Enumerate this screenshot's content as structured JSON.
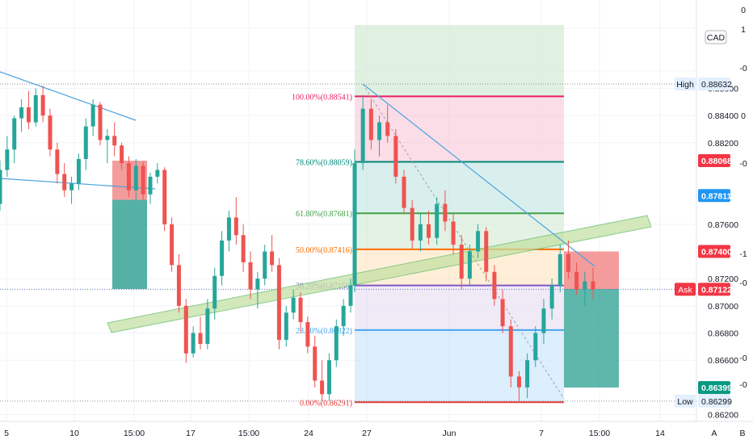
{
  "chart_data": {
    "type": "candlestick",
    "symbol_currency": "CAD",
    "colors": {
      "up": "#26a69a",
      "down": "#ef5350",
      "fib_0": "#e53935",
      "fib_236": "#42a5f5",
      "fib_382": "#7e57c2",
      "fib_50": "#ff6d00",
      "fib_618": "#43a047",
      "fib_786": "#00897b",
      "fib_100": "#e91e63",
      "ask": "#f23645",
      "target_blue": "#2196f3",
      "green_badge": "#089981",
      "axis_text": "#131722"
    },
    "y_axis": {
      "range": [
        0.8615,
        0.8925
      ],
      "ticks": [
        {
          "value": 0.886,
          "label": "0.88600"
        },
        {
          "value": 0.884,
          "label": "0.88400"
        },
        {
          "value": 0.882,
          "label": "0.88200"
        },
        {
          "value": 0.876,
          "label": "0.87600"
        },
        {
          "value": 0.872,
          "label": "0.87200"
        },
        {
          "value": 0.87,
          "label": "0.87000"
        },
        {
          "value": 0.868,
          "label": "0.86800"
        },
        {
          "value": 0.866,
          "label": "0.86600"
        },
        {
          "value": 0.862,
          "label": "0.86200"
        }
      ],
      "indicator_scale_labels": [
        "0",
        "1",
        "-0",
        "0",
        "-0",
        "-1",
        "-0",
        "-0",
        "-0"
      ]
    },
    "x_axis": {
      "labels": [
        "5",
        "10",
        "15:00",
        "17",
        "15:00",
        "24",
        "27",
        "Jun",
        "7",
        "15:00",
        "14"
      ],
      "bottom_right_labels": [
        "A",
        "B"
      ]
    },
    "price_badges": [
      {
        "label": "High",
        "value": "0.88632",
        "price": 0.88632,
        "style": "light"
      },
      {
        "label": "",
        "value": "0.88068",
        "price": 0.88068,
        "style": "red"
      },
      {
        "label": "",
        "value": "0.87811",
        "price": 0.87811,
        "style": "blue"
      },
      {
        "label": "",
        "value": "0.87400",
        "price": 0.874,
        "style": "red"
      },
      {
        "label": "Ask",
        "value": "0.87122",
        "price": 0.87122,
        "style": "red"
      },
      {
        "label": "",
        "value": "0.86399",
        "price": 0.86399,
        "style": "green"
      },
      {
        "label": "Low",
        "value": "0.86299",
        "price": 0.86299,
        "style": "light"
      }
    ],
    "fibonacci": {
      "levels": [
        {
          "label": "100.00%(0.88541)",
          "price": 0.88541,
          "color_key": "fib_100"
        },
        {
          "label": "78.60%(0.88059)",
          "price": 0.88059,
          "color_key": "fib_786"
        },
        {
          "label": "61.80%(0.87681)",
          "price": 0.87681,
          "color_key": "fib_618"
        },
        {
          "label": "50.00%(0.87416)",
          "price": 0.87416,
          "color_key": "fib_50"
        },
        {
          "label": "38.20%(0.87150)",
          "price": 0.8715,
          "color_key": "fib_382"
        },
        {
          "label": "23.60%(0.86822)",
          "price": 0.86822,
          "color_key": "fib_236"
        },
        {
          "label": "0.00%(0.86291)",
          "price": 0.86291,
          "color_key": "fib_0"
        }
      ]
    },
    "candles": [
      {
        "o": 0.8775,
        "h": 0.8807,
        "l": 0.877,
        "c": 0.88
      },
      {
        "o": 0.88,
        "h": 0.8825,
        "l": 0.8795,
        "c": 0.8815
      },
      {
        "o": 0.8815,
        "h": 0.884,
        "l": 0.8805,
        "c": 0.8838
      },
      {
        "o": 0.8838,
        "h": 0.8852,
        "l": 0.8828,
        "c": 0.8846
      },
      {
        "o": 0.8846,
        "h": 0.8858,
        "l": 0.883,
        "c": 0.8835
      },
      {
        "o": 0.8835,
        "h": 0.886,
        "l": 0.8832,
        "c": 0.8855
      },
      {
        "o": 0.8855,
        "h": 0.8862,
        "l": 0.8835,
        "c": 0.884
      },
      {
        "o": 0.884,
        "h": 0.8845,
        "l": 0.881,
        "c": 0.8815
      },
      {
        "o": 0.8815,
        "h": 0.882,
        "l": 0.879,
        "c": 0.8797
      },
      {
        "o": 0.8797,
        "h": 0.8805,
        "l": 0.878,
        "c": 0.8785
      },
      {
        "o": 0.8785,
        "h": 0.8795,
        "l": 0.8775,
        "c": 0.879
      },
      {
        "o": 0.879,
        "h": 0.8812,
        "l": 0.8785,
        "c": 0.8808
      },
      {
        "o": 0.8808,
        "h": 0.8838,
        "l": 0.88,
        "c": 0.8832
      },
      {
        "o": 0.8832,
        "h": 0.8852,
        "l": 0.8825,
        "c": 0.8848
      },
      {
        "o": 0.8848,
        "h": 0.885,
        "l": 0.8818,
        "c": 0.8822
      },
      {
        "o": 0.8822,
        "h": 0.883,
        "l": 0.8805,
        "c": 0.8825
      },
      {
        "o": 0.8825,
        "h": 0.8835,
        "l": 0.881,
        "c": 0.8818
      },
      {
        "o": 0.8818,
        "h": 0.882,
        "l": 0.88,
        "c": 0.8805
      },
      {
        "o": 0.8805,
        "h": 0.881,
        "l": 0.878,
        "c": 0.8785
      },
      {
        "o": 0.8785,
        "h": 0.8808,
        "l": 0.8778,
        "c": 0.8803
      },
      {
        "o": 0.8803,
        "h": 0.8806,
        "l": 0.8778,
        "c": 0.8782
      },
      {
        "o": 0.8782,
        "h": 0.8798,
        "l": 0.8775,
        "c": 0.8795
      },
      {
        "o": 0.8795,
        "h": 0.8805,
        "l": 0.879,
        "c": 0.88
      },
      {
        "o": 0.88,
        "h": 0.8802,
        "l": 0.8755,
        "c": 0.876
      },
      {
        "o": 0.876,
        "h": 0.8765,
        "l": 0.8725,
        "c": 0.873
      },
      {
        "o": 0.873,
        "h": 0.8738,
        "l": 0.8695,
        "c": 0.87
      },
      {
        "o": 0.87,
        "h": 0.8705,
        "l": 0.8658,
        "c": 0.8665
      },
      {
        "o": 0.8665,
        "h": 0.8685,
        "l": 0.8662,
        "c": 0.868
      },
      {
        "o": 0.868,
        "h": 0.8692,
        "l": 0.8668,
        "c": 0.8672
      },
      {
        "o": 0.8672,
        "h": 0.8705,
        "l": 0.8668,
        "c": 0.8698
      },
      {
        "o": 0.8698,
        "h": 0.8728,
        "l": 0.869,
        "c": 0.8722
      },
      {
        "o": 0.8722,
        "h": 0.8755,
        "l": 0.8715,
        "c": 0.8748
      },
      {
        "o": 0.8748,
        "h": 0.877,
        "l": 0.874,
        "c": 0.8765
      },
      {
        "o": 0.8765,
        "h": 0.878,
        "l": 0.8745,
        "c": 0.8752
      },
      {
        "o": 0.8752,
        "h": 0.876,
        "l": 0.8725,
        "c": 0.8732
      },
      {
        "o": 0.8732,
        "h": 0.874,
        "l": 0.8705,
        "c": 0.8712
      },
      {
        "o": 0.8712,
        "h": 0.8725,
        "l": 0.8698,
        "c": 0.872
      },
      {
        "o": 0.872,
        "h": 0.8745,
        "l": 0.8715,
        "c": 0.874
      },
      {
        "o": 0.874,
        "h": 0.8752,
        "l": 0.8725,
        "c": 0.873
      },
      {
        "o": 0.873,
        "h": 0.8735,
        "l": 0.8668,
        "c": 0.8675
      },
      {
        "o": 0.8675,
        "h": 0.87,
        "l": 0.867,
        "c": 0.8695
      },
      {
        "o": 0.8695,
        "h": 0.8712,
        "l": 0.869,
        "c": 0.8706
      },
      {
        "o": 0.8706,
        "h": 0.871,
        "l": 0.868,
        "c": 0.8688
      },
      {
        "o": 0.8688,
        "h": 0.8692,
        "l": 0.8665,
        "c": 0.867
      },
      {
        "o": 0.867,
        "h": 0.8678,
        "l": 0.864,
        "c": 0.8645
      },
      {
        "o": 0.8645,
        "h": 0.866,
        "l": 0.863,
        "c": 0.8635
      },
      {
        "o": 0.8635,
        "h": 0.8665,
        "l": 0.863,
        "c": 0.866
      },
      {
        "o": 0.866,
        "h": 0.869,
        "l": 0.8655,
        "c": 0.8685
      },
      {
        "o": 0.8685,
        "h": 0.8705,
        "l": 0.8678,
        "c": 0.87
      },
      {
        "o": 0.87,
        "h": 0.872,
        "l": 0.8695,
        "c": 0.8715
      },
      {
        "o": 0.8715,
        "h": 0.8815,
        "l": 0.871,
        "c": 0.8805
      },
      {
        "o": 0.8805,
        "h": 0.8855,
        "l": 0.88,
        "c": 0.8845
      },
      {
        "o": 0.8845,
        "h": 0.8852,
        "l": 0.8815,
        "c": 0.8822
      },
      {
        "o": 0.8822,
        "h": 0.884,
        "l": 0.881,
        "c": 0.8835
      },
      {
        "o": 0.8835,
        "h": 0.8848,
        "l": 0.882,
        "c": 0.8825
      },
      {
        "o": 0.8825,
        "h": 0.883,
        "l": 0.879,
        "c": 0.8795
      },
      {
        "o": 0.8795,
        "h": 0.88,
        "l": 0.8768,
        "c": 0.8772
      },
      {
        "o": 0.8772,
        "h": 0.8778,
        "l": 0.8742,
        "c": 0.8748
      },
      {
        "o": 0.8748,
        "h": 0.8768,
        "l": 0.874,
        "c": 0.876
      },
      {
        "o": 0.876,
        "h": 0.877,
        "l": 0.8745,
        "c": 0.875
      },
      {
        "o": 0.875,
        "h": 0.878,
        "l": 0.8745,
        "c": 0.8775
      },
      {
        "o": 0.8775,
        "h": 0.8785,
        "l": 0.8755,
        "c": 0.8762
      },
      {
        "o": 0.8762,
        "h": 0.8768,
        "l": 0.8738,
        "c": 0.8745
      },
      {
        "o": 0.8745,
        "h": 0.8752,
        "l": 0.8712,
        "c": 0.872
      },
      {
        "o": 0.872,
        "h": 0.8745,
        "l": 0.8715,
        "c": 0.874
      },
      {
        "o": 0.874,
        "h": 0.876,
        "l": 0.8735,
        "c": 0.8755
      },
      {
        "o": 0.8755,
        "h": 0.8758,
        "l": 0.8718,
        "c": 0.8725
      },
      {
        "o": 0.8725,
        "h": 0.873,
        "l": 0.87,
        "c": 0.8705
      },
      {
        "o": 0.8705,
        "h": 0.8712,
        "l": 0.868,
        "c": 0.8685
      },
      {
        "o": 0.8685,
        "h": 0.869,
        "l": 0.864,
        "c": 0.8648
      },
      {
        "o": 0.8648,
        "h": 0.8652,
        "l": 0.863,
        "c": 0.864
      },
      {
        "o": 0.864,
        "h": 0.8665,
        "l": 0.8632,
        "c": 0.866
      },
      {
        "o": 0.866,
        "h": 0.8685,
        "l": 0.8655,
        "c": 0.868
      },
      {
        "o": 0.868,
        "h": 0.8705,
        "l": 0.8672,
        "c": 0.8698
      },
      {
        "o": 0.8698,
        "h": 0.872,
        "l": 0.869,
        "c": 0.8715
      },
      {
        "o": 0.8715,
        "h": 0.8745,
        "l": 0.871,
        "c": 0.8738
      },
      {
        "o": 0.8738,
        "h": 0.8748,
        "l": 0.872,
        "c": 0.8725
      },
      {
        "o": 0.8725,
        "h": 0.8732,
        "l": 0.8708,
        "c": 0.8712
      },
      {
        "o": 0.8712,
        "h": 0.8725,
        "l": 0.87,
        "c": 0.8718
      },
      {
        "o": 0.8718,
        "h": 0.8728,
        "l": 0.8705,
        "c": 0.8712
      }
    ]
  }
}
